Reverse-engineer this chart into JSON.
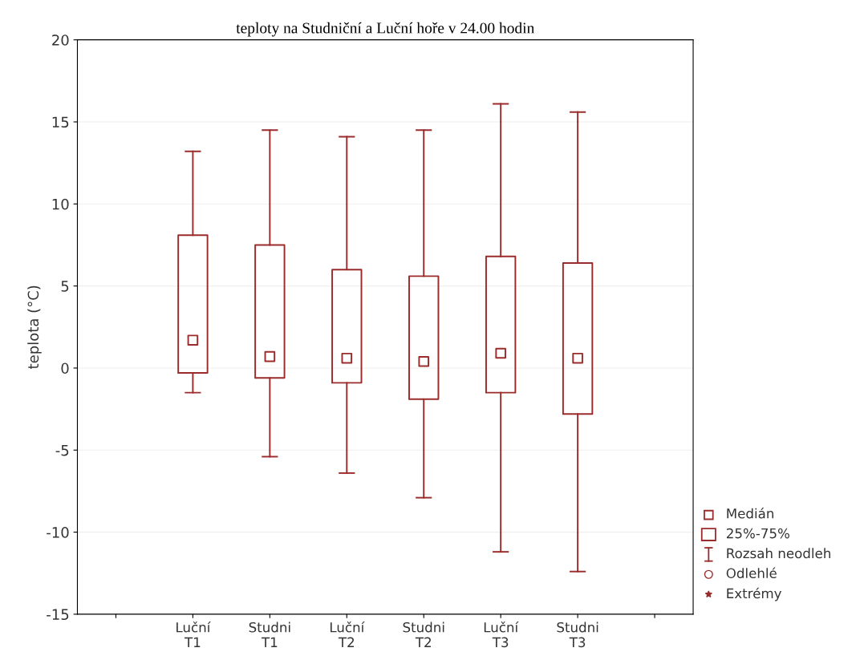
{
  "chart_data": {
    "type": "box",
    "title": "teploty na Studniční a Luční hoře v 24.00 hodin",
    "ylabel": "teplota (°C)",
    "categories": [
      null,
      "Luční\nT1",
      "Studni\nT1",
      "Luční\nT2",
      "Studni\nT2",
      "Luční\nT3",
      "Studni\nT3",
      null
    ],
    "color": "#9b2c2c",
    "boxes": [
      null,
      {
        "low": -1.5,
        "q1": -0.3,
        "median": 1.7,
        "q3": 8.1,
        "high": 13.2
      },
      {
        "low": -5.4,
        "q1": -0.6,
        "median": 0.7,
        "q3": 7.5,
        "high": 14.5
      },
      {
        "low": -6.4,
        "q1": -0.9,
        "median": 0.6,
        "q3": 6.0,
        "high": 14.1
      },
      {
        "low": -7.9,
        "q1": -1.9,
        "median": 0.4,
        "q3": 5.6,
        "high": 14.5
      },
      {
        "low": -11.2,
        "q1": -1.5,
        "median": 0.9,
        "q3": 6.8,
        "high": 16.1
      },
      {
        "low": -12.4,
        "q1": -2.8,
        "median": 0.6,
        "q3": 6.4,
        "high": 15.6
      },
      null
    ],
    "ylim": [
      -15,
      20
    ],
    "yticks": [
      -15,
      -10,
      -5,
      0,
      5,
      10,
      15,
      20
    ],
    "grid": "y",
    "annotations": [
      "Medián",
      "25%-75%",
      "Rozsah neodleh",
      "Odlehlé",
      "Extrémy"
    ]
  }
}
